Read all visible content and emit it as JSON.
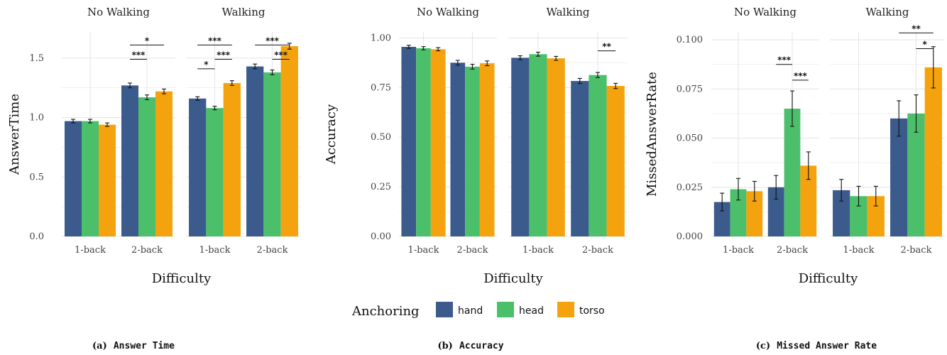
{
  "legend": {
    "title": "Anchoring",
    "items": [
      {
        "label": "hand",
        "color": "#3b5b8c"
      },
      {
        "label": "head",
        "color": "#4cbf6b"
      },
      {
        "label": "torso",
        "color": "#f5a20f"
      }
    ]
  },
  "colors": {
    "hand": "#3b5b8c",
    "head": "#4cbf6b",
    "torso": "#f5a20f",
    "grid": "#e6e6e6"
  },
  "chart_data": [
    {
      "type": "bar",
      "caption_prefix": "(a)",
      "caption_name": "Answer Time",
      "xlabel": "Difficulty",
      "ylabel": "AnswerTime",
      "ylim": [
        0,
        1.72
      ],
      "yticks": [
        0.0,
        0.5,
        1.0,
        1.5
      ],
      "ytick_labels": [
        "0.0",
        "0.5",
        "1.0",
        "1.5"
      ],
      "categories": [
        "1-back",
        "2-back"
      ],
      "facets": [
        {
          "title": "No Walking",
          "series": [
            {
              "name": "hand",
              "values": [
                0.97,
                1.27
              ],
              "errors": [
                0.015,
                0.02
              ]
            },
            {
              "name": "head",
              "values": [
                0.97,
                1.17
              ],
              "errors": [
                0.015,
                0.02
              ]
            },
            {
              "name": "torso",
              "values": [
                0.94,
                1.22
              ],
              "errors": [
                0.015,
                0.02
              ]
            }
          ],
          "significance": [
            {
              "category": "2-back",
              "from": "hand",
              "to": "head",
              "label": "***",
              "y": 1.49
            },
            {
              "category": "2-back",
              "from": "hand",
              "to": "torso",
              "label": "*",
              "y": 1.61
            }
          ]
        },
        {
          "title": "Walking",
          "series": [
            {
              "name": "hand",
              "values": [
                1.16,
                1.43
              ],
              "errors": [
                0.015,
                0.02
              ]
            },
            {
              "name": "head",
              "values": [
                1.08,
                1.38
              ],
              "errors": [
                0.015,
                0.02
              ]
            },
            {
              "name": "torso",
              "values": [
                1.29,
                1.6
              ],
              "errors": [
                0.02,
                0.025
              ]
            }
          ],
          "significance": [
            {
              "category": "1-back",
              "from": "hand",
              "to": "head",
              "label": "*",
              "y": 1.41
            },
            {
              "category": "1-back",
              "from": "head",
              "to": "torso",
              "label": "***",
              "y": 1.49
            },
            {
              "category": "1-back",
              "from": "hand",
              "to": "torso",
              "label": "***",
              "y": 1.61
            },
            {
              "category": "2-back",
              "from": "head",
              "to": "torso",
              "label": "***",
              "y": 1.49
            },
            {
              "category": "2-back",
              "from": "hand",
              "to": "torso",
              "label": "***",
              "y": 1.61
            }
          ]
        }
      ]
    },
    {
      "type": "bar",
      "caption_prefix": "(b)",
      "caption_name": "Accuracy",
      "xlabel": "Difficulty",
      "ylabel": "Accuracy",
      "ylim": [
        0,
        1.03
      ],
      "yticks": [
        0.0,
        0.25,
        0.5,
        0.75,
        1.0
      ],
      "ytick_labels": [
        "0.00",
        "0.25",
        "0.50",
        "0.75",
        "1.00"
      ],
      "categories": [
        "1-back",
        "2-back"
      ],
      "facets": [
        {
          "title": "No Walking",
          "series": [
            {
              "name": "hand",
              "values": [
                0.955,
                0.875
              ],
              "errors": [
                0.008,
                0.012
              ]
            },
            {
              "name": "head",
              "values": [
                0.948,
                0.855
              ],
              "errors": [
                0.008,
                0.012
              ]
            },
            {
              "name": "torso",
              "values": [
                0.943,
                0.872
              ],
              "errors": [
                0.008,
                0.012
              ]
            }
          ],
          "significance": []
        },
        {
          "title": "Walking",
          "series": [
            {
              "name": "hand",
              "values": [
                0.9,
                0.783
              ],
              "errors": [
                0.01,
                0.013
              ]
            },
            {
              "name": "head",
              "values": [
                0.918,
                0.813
              ],
              "errors": [
                0.01,
                0.013
              ]
            },
            {
              "name": "torso",
              "values": [
                0.897,
                0.758
              ],
              "errors": [
                0.01,
                0.013
              ]
            }
          ],
          "significance": [
            {
              "category": "2-back",
              "from": "head",
              "to": "torso",
              "label": "**",
              "y": 0.935
            }
          ]
        }
      ]
    },
    {
      "type": "bar",
      "caption_prefix": "(c)",
      "caption_name": "Missed Answer Rate",
      "xlabel": "Difficulty",
      "ylabel": "MissedAnswerRate",
      "ylim": [
        0,
        0.104
      ],
      "yticks": [
        0.0,
        0.025,
        0.05,
        0.075,
        0.1
      ],
      "ytick_labels": [
        "0.000",
        "0.025",
        "0.050",
        "0.075",
        "0.100"
      ],
      "categories": [
        "1-back",
        "2-back"
      ],
      "facets": [
        {
          "title": "No Walking",
          "series": [
            {
              "name": "hand",
              "values": [
                0.0175,
                0.025
              ],
              "errors": [
                0.0045,
                0.006
              ]
            },
            {
              "name": "head",
              "values": [
                0.024,
                0.065
              ],
              "errors": [
                0.0055,
                0.009
              ]
            },
            {
              "name": "torso",
              "values": [
                0.023,
                0.036
              ],
              "errors": [
                0.005,
                0.007
              ]
            }
          ],
          "significance": [
            {
              "category": "2-back",
              "from": "hand",
              "to": "head",
              "label": "***",
              "y": 0.0875
            },
            {
              "category": "2-back",
              "from": "head",
              "to": "torso",
              "label": "***",
              "y": 0.0795
            }
          ]
        },
        {
          "title": "Walking",
          "series": [
            {
              "name": "hand",
              "values": [
                0.0235,
                0.06
              ],
              "errors": [
                0.0055,
                0.009
              ]
            },
            {
              "name": "head",
              "values": [
                0.0205,
                0.0625
              ],
              "errors": [
                0.005,
                0.0095
              ]
            },
            {
              "name": "torso",
              "values": [
                0.0205,
                0.086
              ],
              "errors": [
                0.005,
                0.0105
              ]
            }
          ],
          "significance": [
            {
              "category": "2-back",
              "from": "head",
              "to": "torso",
              "label": "*",
              "y": 0.0955
            },
            {
              "category": "2-back",
              "from": "hand",
              "to": "torso",
              "label": "**",
              "y": 0.1035
            }
          ]
        }
      ]
    }
  ]
}
